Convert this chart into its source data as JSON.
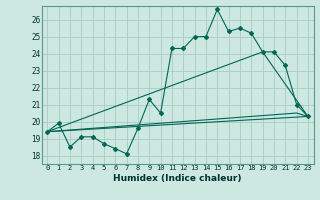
{
  "xlabel": "Humidex (Indice chaleur)",
  "background_color": "#cce8e0",
  "grid_color": "#aaccc4",
  "line_color": "#006655",
  "xlim": [
    -0.5,
    23.5
  ],
  "ylim": [
    17.5,
    26.8
  ],
  "xticks": [
    0,
    1,
    2,
    3,
    4,
    5,
    6,
    7,
    8,
    9,
    10,
    11,
    12,
    13,
    14,
    15,
    16,
    17,
    18,
    19,
    20,
    21,
    22,
    23
  ],
  "yticks": [
    18,
    19,
    20,
    21,
    22,
    23,
    24,
    25,
    26
  ],
  "line1_x": [
    0,
    1,
    2,
    3,
    4,
    5,
    6,
    7,
    8,
    9,
    10,
    11,
    12,
    13,
    14,
    15,
    16,
    17,
    18,
    19,
    20,
    21,
    22,
    23
  ],
  "line1_y": [
    19.4,
    19.9,
    18.5,
    19.1,
    19.1,
    18.7,
    18.4,
    18.1,
    19.6,
    21.3,
    20.5,
    24.3,
    24.3,
    25.0,
    25.0,
    26.6,
    25.3,
    25.5,
    25.2,
    24.1,
    24.1,
    23.3,
    21.0,
    20.3
  ],
  "line3_x": [
    0,
    23
  ],
  "line3_y": [
    19.4,
    20.3
  ],
  "line4_x": [
    0,
    19,
    23
  ],
  "line4_y": [
    19.4,
    24.1,
    20.3
  ],
  "flat_line_x": [
    0,
    1,
    2,
    3,
    4,
    5,
    6,
    7,
    8,
    9,
    10,
    11,
    12,
    13,
    14,
    15,
    16,
    17,
    18,
    19,
    20,
    21,
    22,
    23
  ],
  "flat_line_y": [
    19.4,
    19.45,
    19.5,
    19.55,
    19.6,
    19.65,
    19.7,
    19.75,
    19.8,
    19.85,
    19.9,
    19.95,
    20.0,
    20.05,
    20.1,
    20.15,
    20.2,
    20.25,
    20.3,
    20.35,
    20.4,
    20.45,
    20.5,
    20.3
  ]
}
